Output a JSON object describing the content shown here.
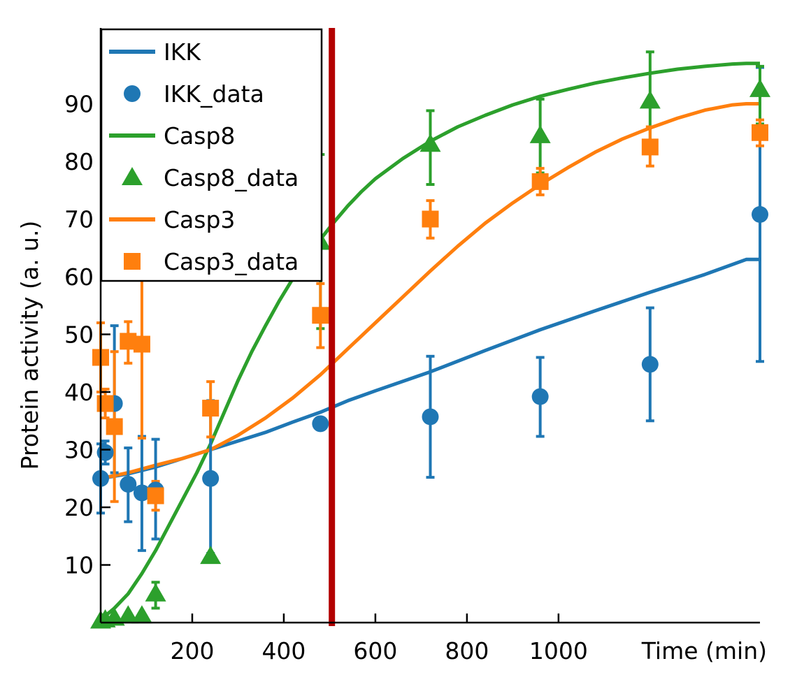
{
  "chart_data": {
    "type": "line",
    "xlabel": "Time (min)",
    "ylabel": "Protein activity (a. u.)",
    "xlim": [
      0,
      1440
    ],
    "ylim": [
      0,
      100
    ],
    "x_ticks": [
      200,
      400,
      600,
      800,
      1000
    ],
    "y_ticks": [
      10,
      20,
      30,
      40,
      50,
      60,
      70,
      80,
      90
    ],
    "vertical_marker": {
      "x": 505,
      "color": "#b30000"
    },
    "legend": {
      "position": "top-left",
      "entries": [
        "IKK",
        "IKK_data",
        "Casp8",
        "Casp8_data",
        "Casp3",
        "Casp3_data"
      ]
    },
    "colors": {
      "IKK": "#1f77b4",
      "Casp8": "#2ca02c",
      "Casp3": "#ff7f0e"
    },
    "series": [
      {
        "name": "IKK",
        "kind": "line",
        "color": "#1f77b4",
        "x": [
          0,
          60,
          120,
          180,
          240,
          300,
          360,
          420,
          480,
          540,
          600,
          720,
          840,
          960,
          1080,
          1200,
          1320,
          1410,
          1440
        ],
        "y": [
          25,
          25.8,
          27,
          28.5,
          30,
          31.5,
          33,
          34.8,
          36.5,
          38.5,
          40.2,
          43.5,
          47.2,
          50.8,
          54.1,
          57.3,
          60.4,
          63,
          63
        ]
      },
      {
        "name": "IKK_data",
        "kind": "points",
        "marker": "circle",
        "color": "#1f77b4",
        "x": [
          0,
          10,
          30,
          60,
          90,
          120,
          240,
          480,
          720,
          960,
          1200,
          1440
        ],
        "y": [
          25,
          29.5,
          38,
          24,
          22.5,
          23,
          25,
          34.5,
          35.7,
          39.2,
          44.8,
          70.8
        ],
        "err_low": [
          19,
          27.5,
          26,
          17.5,
          12.5,
          14.5,
          12,
          33.5,
          25.2,
          32.3,
          35,
          45.3
        ],
        "err_high": [
          31,
          31.5,
          51.5,
          30.3,
          32.3,
          31.8,
          38.5,
          35.5,
          46.2,
          46,
          54.6,
          96.3
        ]
      },
      {
        "name": "Casp8",
        "kind": "line",
        "color": "#2ca02c",
        "x": [
          0,
          30,
          60,
          90,
          120,
          150,
          180,
          210,
          240,
          270,
          300,
          330,
          360,
          390,
          420,
          450,
          480,
          510,
          540,
          570,
          600,
          660,
          720,
          780,
          840,
          900,
          960,
          1020,
          1080,
          1140,
          1200,
          1260,
          1320,
          1380,
          1410,
          1440
        ],
        "y": [
          0.5,
          2.5,
          5,
          8.5,
          12.5,
          17,
          21.5,
          26,
          31,
          36.5,
          42,
          47,
          51.5,
          55.8,
          59.7,
          63.3,
          66.5,
          69.5,
          72.3,
          74.8,
          77,
          80.5,
          83.5,
          86,
          88,
          89.8,
          91.3,
          92.5,
          93.6,
          94.5,
          95.3,
          96,
          96.5,
          96.9,
          97,
          97
        ]
      },
      {
        "name": "Casp8_data",
        "kind": "points",
        "marker": "triangle",
        "color": "#2ca02c",
        "x": [
          0,
          10,
          30,
          60,
          90,
          120,
          240,
          480,
          720,
          960,
          1200,
          1440
        ],
        "y": [
          0.3,
          0.5,
          0.8,
          1.2,
          1.2,
          5,
          11.5,
          66,
          83,
          84.5,
          90.5,
          92.5
        ],
        "err_low": [
          0.3,
          0.5,
          0.8,
          1.2,
          1.2,
          2.5,
          11.5,
          51,
          76,
          78,
          82,
          86.5
        ],
        "err_high": [
          0.3,
          0.5,
          0.8,
          1.2,
          1.2,
          7,
          11.5,
          81.2,
          88.8,
          90.8,
          99,
          96.5
        ]
      },
      {
        "name": "Casp3",
        "kind": "line",
        "color": "#ff7f0e",
        "x": [
          0,
          60,
          120,
          180,
          240,
          300,
          360,
          420,
          480,
          540,
          600,
          660,
          720,
          780,
          840,
          900,
          960,
          1020,
          1080,
          1140,
          1200,
          1260,
          1320,
          1380,
          1410,
          1440
        ],
        "y": [
          25,
          26,
          27.3,
          28.5,
          30,
          32.5,
          35.5,
          39,
          43,
          47.5,
          52,
          56.5,
          61,
          65.3,
          69.3,
          72.8,
          76,
          78.9,
          81.6,
          83.9,
          85.8,
          87.5,
          88.9,
          89.8,
          90,
          90
        ]
      },
      {
        "name": "Casp3_data",
        "kind": "points",
        "marker": "square",
        "color": "#ff7f0e",
        "x": [
          0,
          10,
          30,
          60,
          90,
          120,
          240,
          480,
          720,
          960,
          1200,
          1440
        ],
        "y": [
          46,
          38,
          34,
          48.8,
          48.3,
          22,
          37.2,
          53.3,
          70,
          76.5,
          82.5,
          85
        ],
        "err_low": [
          40,
          35.5,
          21,
          45,
          32,
          19.5,
          32.2,
          47.7,
          66.7,
          74.2,
          79.2,
          82.7
        ],
        "err_high": [
          52,
          40.5,
          47,
          52.2,
          64,
          24.5,
          41.8,
          58.8,
          73.2,
          78.8,
          86,
          87.2
        ]
      }
    ]
  }
}
